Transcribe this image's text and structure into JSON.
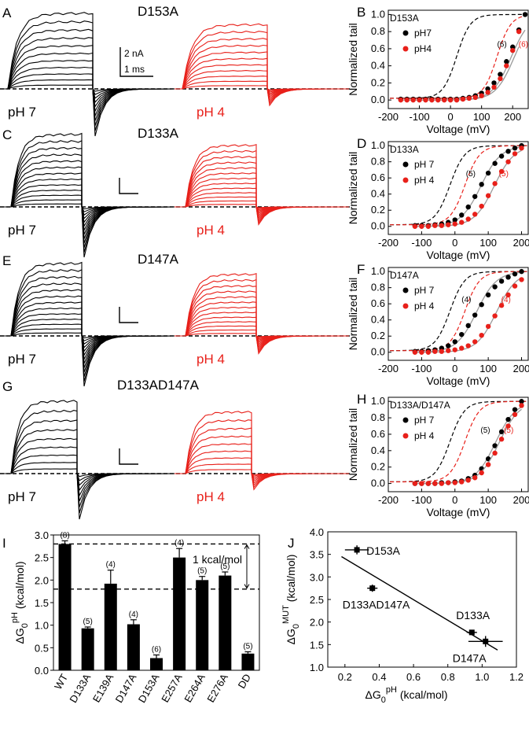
{
  "trace_panels": [
    {
      "letter": "A",
      "title": "D153A",
      "left_label": "pH 7",
      "right_label": "pH 4",
      "scale_bar": {
        "current": "2 nA",
        "time": "1 ms"
      }
    },
    {
      "letter": "C",
      "title": "D133A",
      "left_label": "pH 7",
      "right_label": "pH 4"
    },
    {
      "letter": "E",
      "title": "D147A",
      "left_label": "pH 7",
      "right_label": "pH 4"
    },
    {
      "letter": "G",
      "title": "D133AD147A",
      "left_label": "pH 7",
      "right_label": "pH 4"
    }
  ],
  "colors": {
    "ph7": "#000000",
    "ph4": "#e8201a",
    "fit": "#9a9a9a"
  },
  "chart_data": [
    {
      "panel": "B",
      "type": "scatter",
      "inset_label": "D153A",
      "xlabel": "Voltage (mV)",
      "ylabel": "Normalized tail",
      "xlim": [
        -200,
        250
      ],
      "ylim": [
        -0.1,
        1.05
      ],
      "xticks": [
        -200,
        -100,
        0,
        100,
        200
      ],
      "yticks": [
        0.0,
        0.2,
        0.4,
        0.6,
        0.8,
        1.0
      ],
      "legend": [
        "pH7",
        "pH4"
      ],
      "series": [
        {
          "name": "pH7",
          "x": [
            -160,
            -140,
            -120,
            -100,
            -80,
            -60,
            -40,
            -20,
            0,
            20,
            40,
            60,
            80,
            100,
            120,
            140,
            160,
            180,
            200,
            220,
            240
          ],
          "y": [
            0.01,
            0.01,
            0.01,
            0.01,
            0.01,
            0.01,
            0.01,
            0.01,
            0.01,
            0.01,
            0.02,
            0.03,
            0.05,
            0.08,
            0.13,
            0.2,
            0.3,
            0.45,
            0.62,
            0.82,
            1.0
          ]
        },
        {
          "name": "pH4",
          "x": [
            -160,
            -140,
            -120,
            -100,
            -80,
            -60,
            -40,
            -20,
            0,
            20,
            40,
            60,
            80,
            100,
            120,
            140,
            160,
            180,
            200,
            220
          ],
          "y": [
            0.0,
            0.0,
            0.0,
            0.0,
            0.0,
            0.0,
            0.0,
            0.0,
            0.0,
            0.0,
            0.01,
            0.02,
            0.03,
            0.05,
            0.09,
            0.15,
            0.25,
            0.4,
            0.58,
            0.8
          ]
        }
      ],
      "n_labels": [
        "(6)",
        "(6)"
      ],
      "wt_midpoints": [
        20,
        150
      ],
      "fit_midpoints": [
        195,
        205
      ]
    },
    {
      "panel": "D",
      "type": "scatter",
      "inset_label": "D133A",
      "xlabel": "Voltage (mV)",
      "ylabel": "Normalized tail",
      "xlim": [
        -200,
        220
      ],
      "ylim": [
        -0.1,
        1.05
      ],
      "xticks": [
        -200,
        -100,
        0,
        100,
        200
      ],
      "yticks": [
        0.0,
        0.2,
        0.4,
        0.6,
        0.8,
        1.0
      ],
      "legend": [
        "pH 7",
        "pH 4"
      ],
      "series": [
        {
          "name": "pH 7",
          "x": [
            -120,
            -100,
            -80,
            -60,
            -40,
            -20,
            0,
            20,
            40,
            60,
            80,
            100,
            120,
            140,
            160,
            180,
            200
          ],
          "y": [
            0.01,
            0.01,
            0.01,
            0.02,
            0.03,
            0.05,
            0.08,
            0.14,
            0.24,
            0.37,
            0.52,
            0.66,
            0.78,
            0.87,
            0.93,
            0.97,
            1.0
          ]
        },
        {
          "name": "pH 4",
          "x": [
            -120,
            -100,
            -80,
            -60,
            -40,
            -20,
            0,
            20,
            40,
            60,
            80,
            100,
            120,
            140,
            160,
            180,
            200
          ],
          "y": [
            0.0,
            0.0,
            0.0,
            0.01,
            0.01,
            0.02,
            0.03,
            0.05,
            0.09,
            0.15,
            0.25,
            0.38,
            0.53,
            0.68,
            0.8,
            0.9,
            0.97
          ]
        }
      ],
      "n_labels": [
        "(5)",
        "(5)"
      ],
      "wt_midpoints": [
        -15,
        30
      ],
      "fit_midpoints": [
        78,
        118
      ]
    },
    {
      "panel": "F",
      "type": "scatter",
      "inset_label": "D147A",
      "xlabel": "Voltage (mV)",
      "ylabel": "Normalized tail",
      "xlim": [
        -200,
        220
      ],
      "ylim": [
        -0.1,
        1.05
      ],
      "xticks": [
        -200,
        -100,
        0,
        100,
        200
      ],
      "yticks": [
        0.0,
        0.2,
        0.4,
        0.6,
        0.8,
        1.0
      ],
      "legend": [
        "pH 7",
        "pH 4"
      ],
      "series": [
        {
          "name": "pH 7",
          "x": [
            -120,
            -100,
            -80,
            -60,
            -40,
            -20,
            0,
            20,
            40,
            60,
            80,
            100,
            120,
            140,
            160,
            180,
            200
          ],
          "y": [
            0.01,
            0.01,
            0.02,
            0.03,
            0.05,
            0.08,
            0.13,
            0.22,
            0.33,
            0.46,
            0.59,
            0.71,
            0.81,
            0.88,
            0.93,
            0.97,
            1.0
          ]
        },
        {
          "name": "pH 4",
          "x": [
            -120,
            -100,
            -80,
            -60,
            -40,
            -20,
            0,
            20,
            40,
            60,
            80,
            100,
            120,
            140,
            160,
            180,
            200
          ],
          "y": [
            0.0,
            0.0,
            0.0,
            0.01,
            0.01,
            0.02,
            0.03,
            0.05,
            0.08,
            0.13,
            0.21,
            0.32,
            0.45,
            0.58,
            0.71,
            0.82,
            0.9
          ]
        }
      ],
      "n_labels": [
        "(4)",
        "(4)"
      ],
      "wt_midpoints": [
        -15,
        30
      ],
      "fit_midpoints": [
        65,
        125
      ]
    },
    {
      "panel": "H",
      "type": "scatter",
      "inset_label": "D133A/D147A",
      "xlabel": "Voltage (mV)",
      "ylabel": "Normalized tail",
      "xlim": [
        -200,
        220
      ],
      "ylim": [
        -0.1,
        1.05
      ],
      "xticks": [
        -200,
        -100,
        0,
        100,
        200
      ],
      "yticks": [
        0.0,
        0.2,
        0.4,
        0.6,
        0.8,
        1.0
      ],
      "legend": [
        "pH 7",
        "pH 4"
      ],
      "series": [
        {
          "name": "pH 7",
          "x": [
            -120,
            -100,
            -80,
            -60,
            -40,
            -20,
            0,
            20,
            40,
            60,
            80,
            100,
            120,
            140,
            160,
            180,
            200
          ],
          "y": [
            0.0,
            0.0,
            0.0,
            0.0,
            0.01,
            0.01,
            0.02,
            0.03,
            0.06,
            0.1,
            0.18,
            0.3,
            0.46,
            0.63,
            0.78,
            0.9,
            1.0
          ]
        },
        {
          "name": "pH 4",
          "x": [
            -120,
            -100,
            -80,
            -60,
            -40,
            -20,
            0,
            20,
            40,
            60,
            80,
            100,
            120,
            140,
            160,
            180,
            200
          ],
          "y": [
            0.0,
            0.0,
            0.0,
            0.0,
            0.0,
            0.01,
            0.01,
            0.02,
            0.04,
            0.07,
            0.13,
            0.23,
            0.37,
            0.54,
            0.7,
            0.84,
            0.95
          ]
        }
      ],
      "n_labels": [
        "(5)",
        "(5)"
      ],
      "wt_midpoints": [
        -15,
        30
      ],
      "fit_midpoints": [
        122,
        133
      ]
    },
    {
      "panel": "I",
      "type": "bar",
      "ylabel": "ΔG0pH (kcal/mol)",
      "ylabel_main": "ΔG",
      "ylabel_sub": "0",
      "ylabel_sup": "pH",
      "ylabel_unit": " (kcal/mol)",
      "ylim": [
        0.0,
        3.0
      ],
      "yticks": [
        0.0,
        0.5,
        1.0,
        1.5,
        2.0,
        2.5,
        3.0
      ],
      "categories": [
        "WT",
        "D133A",
        "E139A",
        "D147A",
        "D153A",
        "E257A",
        "E264A",
        "E276A",
        "DD"
      ],
      "values": [
        2.8,
        0.93,
        1.92,
        1.02,
        0.27,
        2.5,
        2.0,
        2.1,
        0.37
      ],
      "errors": [
        0.07,
        0.03,
        0.3,
        0.1,
        0.07,
        0.2,
        0.08,
        0.08,
        0.04
      ],
      "n_labels": [
        "(8)",
        "(5)",
        "(4)",
        "(4)",
        "(6)",
        "(4)",
        "(5)",
        "(5)",
        "(5)"
      ],
      "reference_lines": [
        2.8,
        1.8
      ],
      "annotation": "1 kcal/mol"
    },
    {
      "panel": "J",
      "type": "scatter",
      "xlabel": "ΔG0pH (kcal/mol)",
      "xlabel_main": "ΔG",
      "xlabel_sub": "0",
      "xlabel_sup": "pH",
      "xlabel_unit": " (kcal/mol)",
      "ylabel": "ΔG0MUT (kcal/mol)",
      "ylabel_main": "ΔG",
      "ylabel_sub": "0",
      "ylabel_sup": "MUT",
      "ylabel_unit": " (kcal/mol)",
      "xlim": [
        0.1,
        1.2
      ],
      "ylim": [
        1.0,
        4.0
      ],
      "xticks": [
        0.2,
        0.4,
        0.6,
        0.8,
        1.0,
        1.2
      ],
      "yticks": [
        1.0,
        1.5,
        2.0,
        2.5,
        3.0,
        3.5,
        4.0
      ],
      "points": [
        {
          "label": "D153A",
          "x": 0.27,
          "y": 3.6,
          "xerr": 0.07,
          "yerr": 0.1
        },
        {
          "label": "D133AD147A",
          "x": 0.36,
          "y": 2.75,
          "xerr": 0.03,
          "yerr": 0.08
        },
        {
          "label": "D133A",
          "x": 0.94,
          "y": 1.77,
          "xerr": 0.03,
          "yerr": 0.05
        },
        {
          "label": "D147A",
          "x": 1.02,
          "y": 1.57,
          "xerr": 0.1,
          "yerr": 0.12
        }
      ],
      "fit_line": {
        "x": [
          0.18,
          1.09
        ],
        "y": [
          3.45,
          1.38
        ]
      }
    }
  ]
}
